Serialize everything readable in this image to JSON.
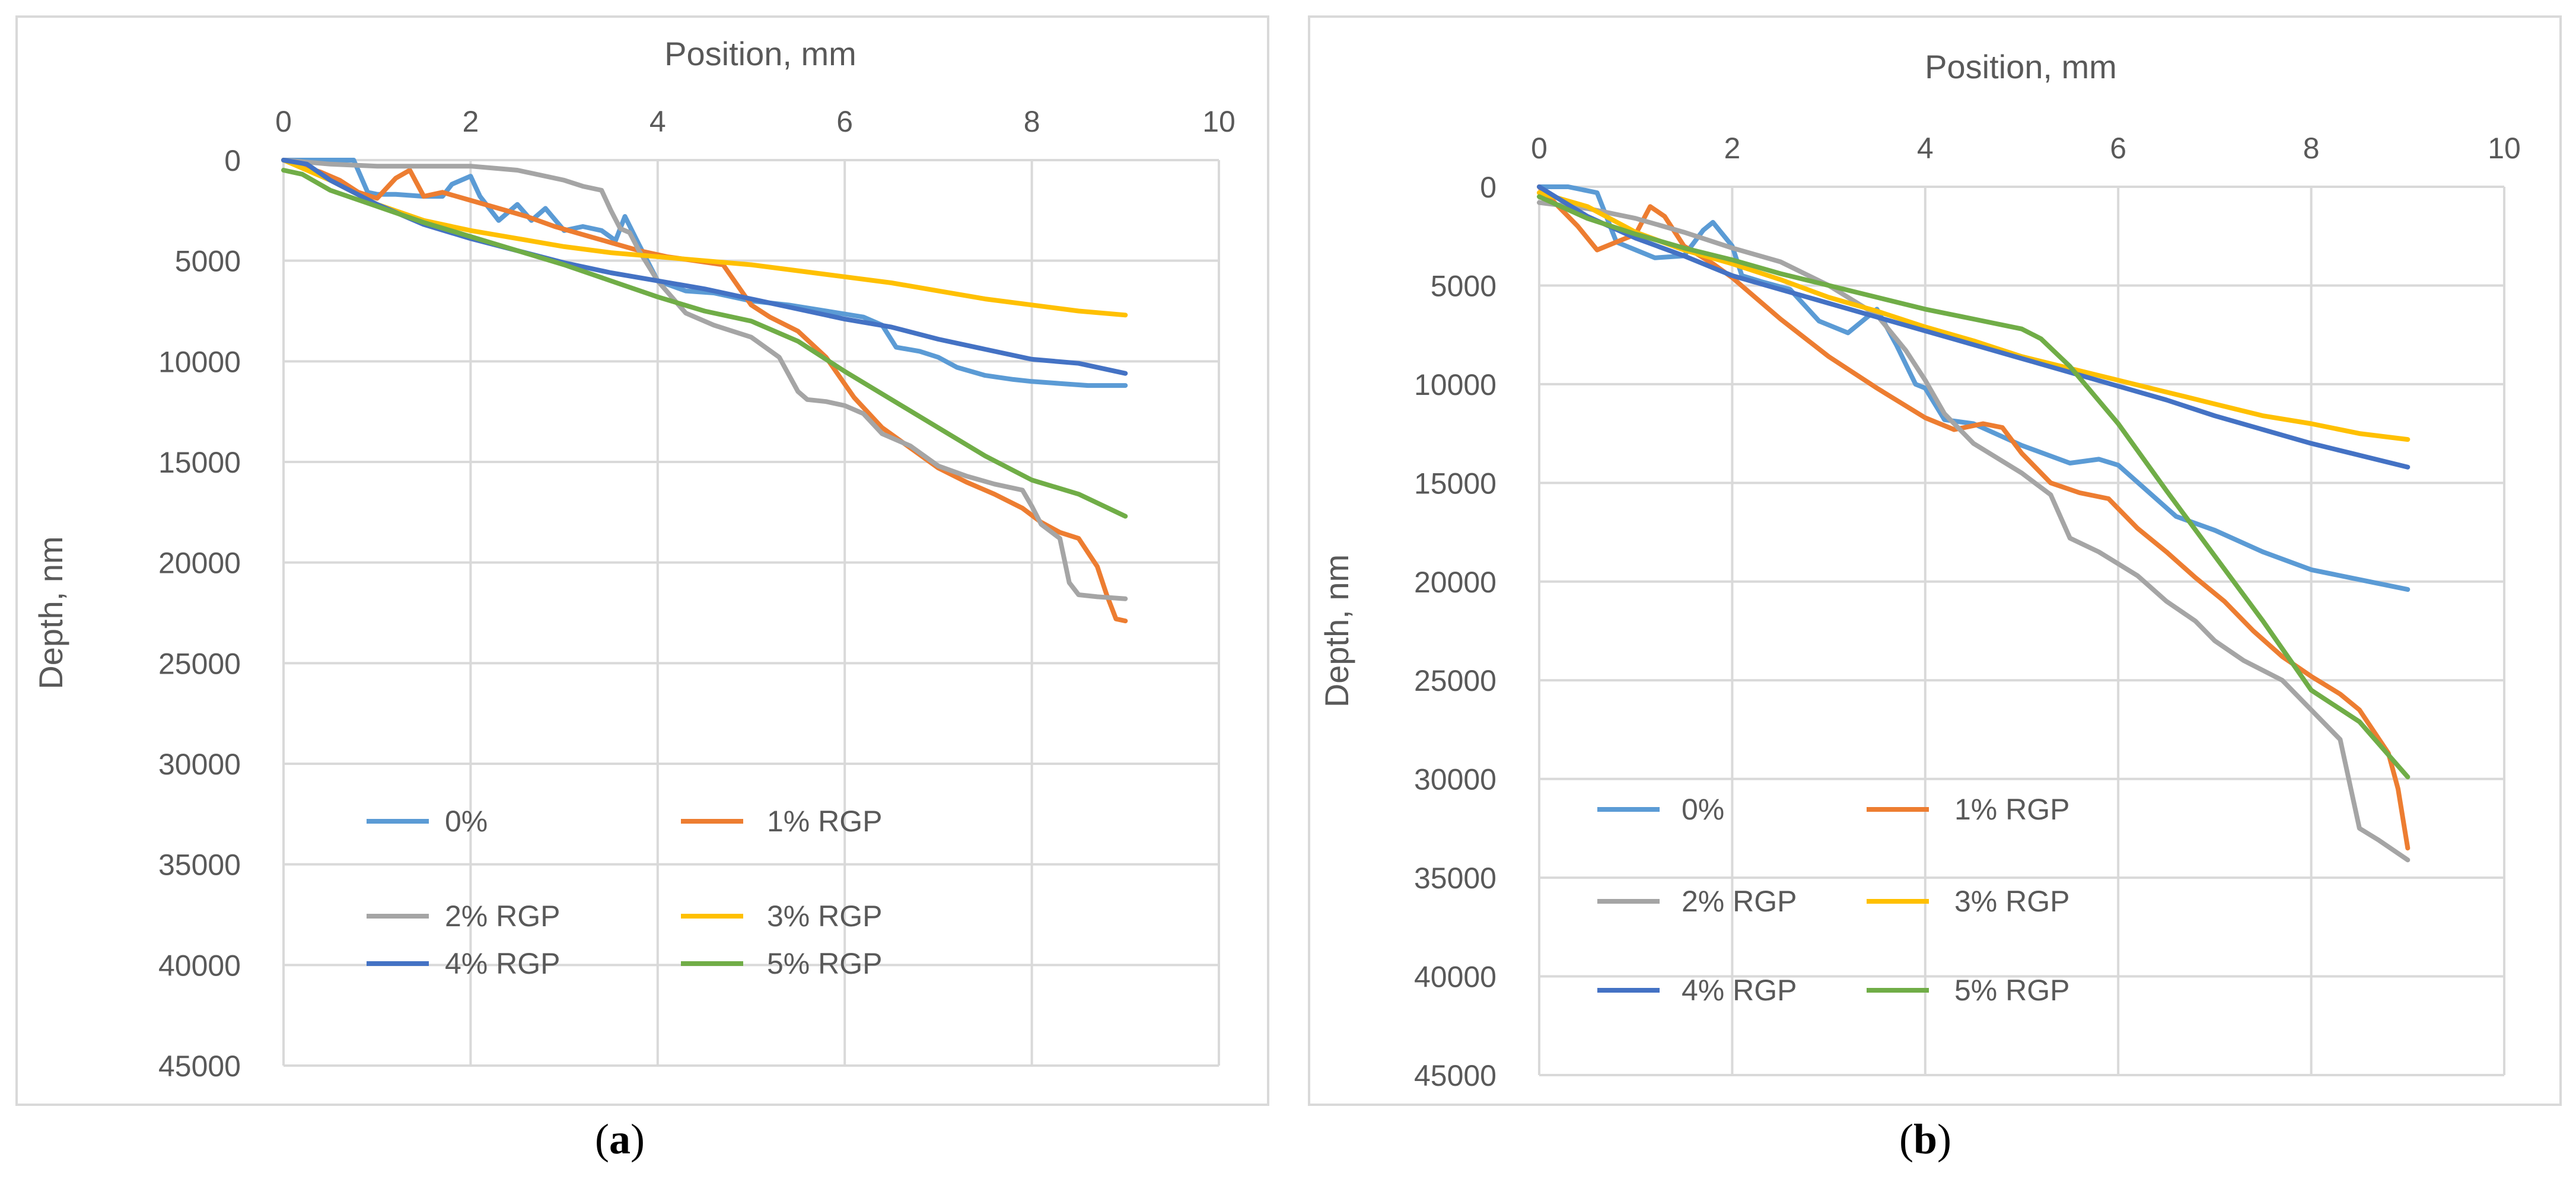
{
  "chart_data": [
    {
      "type": "line",
      "panel_label": "a",
      "title": "",
      "xlabel": "Position, mm",
      "ylabel": "Depth, nm",
      "xlim": [
        0,
        10
      ],
      "ylim": [
        0,
        45000
      ],
      "y_inverted": true,
      "x_axis_position": "top",
      "xticks": [
        0,
        2,
        4,
        6,
        8,
        10
      ],
      "yticks": [
        0,
        5000,
        10000,
        15000,
        20000,
        25000,
        30000,
        35000,
        40000,
        45000
      ],
      "grid": true,
      "legend_position": "bottom",
      "series": [
        {
          "name": "0%",
          "color": "#5b9bd5",
          "x": [
            0,
            0.3,
            0.5,
            0.65,
            0.75,
            0.9,
            1.0,
            1.2,
            1.5,
            1.7,
            1.8,
            2.0,
            2.1,
            2.3,
            2.5,
            2.65,
            2.8,
            3.0,
            3.2,
            3.4,
            3.55,
            3.65,
            3.8,
            4.0,
            4.3,
            4.6,
            5.0,
            5.4,
            5.8,
            6.2,
            6.4,
            6.55,
            6.8,
            7.0,
            7.2,
            7.5,
            7.8,
            8.0,
            8.3,
            8.6,
            9.0
          ],
          "y": [
            0,
            0,
            0,
            0,
            0,
            1600,
            1700,
            1700,
            1800,
            1800,
            1200,
            800,
            1800,
            3000,
            2200,
            3000,
            2400,
            3500,
            3300,
            3500,
            4000,
            2800,
            4200,
            6000,
            6500,
            6600,
            7000,
            7200,
            7500,
            7800,
            8200,
            9300,
            9500,
            9800,
            10300,
            10700,
            10900,
            11000,
            11100,
            11200,
            11200
          ]
        },
        {
          "name": "1% RGP",
          "color": "#ed7d31",
          "x": [
            0,
            0.2,
            0.4,
            0.6,
            0.8,
            1.0,
            1.2,
            1.35,
            1.5,
            1.7,
            2.0,
            2.3,
            2.6,
            2.9,
            3.2,
            3.5,
            3.8,
            4.1,
            4.4,
            4.7,
            5.0,
            5.2,
            5.5,
            5.8,
            6.1,
            6.4,
            6.7,
            7.0,
            7.3,
            7.6,
            7.9,
            8.1,
            8.3,
            8.5,
            8.7,
            8.8,
            8.9,
            9.0
          ],
          "y": [
            0,
            300,
            600,
            1000,
            1600,
            1900,
            900,
            500,
            1800,
            1600,
            2000,
            2400,
            2800,
            3300,
            3700,
            4100,
            4500,
            4800,
            5000,
            5200,
            7200,
            7800,
            8500,
            9800,
            11800,
            13300,
            14300,
            15300,
            16000,
            16600,
            17300,
            18000,
            18500,
            18800,
            20200,
            21600,
            22800,
            22900
          ]
        },
        {
          "name": "2% RGP",
          "color": "#a5a5a5",
          "x": [
            0,
            0.5,
            1.0,
            1.5,
            2.0,
            2.5,
            3.0,
            3.2,
            3.4,
            3.5,
            3.6,
            3.7,
            3.8,
            4.0,
            4.3,
            4.6,
            5.0,
            5.3,
            5.5,
            5.6,
            5.8,
            6.0,
            6.2,
            6.4,
            6.7,
            7.0,
            7.3,
            7.6,
            7.9,
            8.0,
            8.1,
            8.3,
            8.4,
            8.5,
            8.7,
            9.0
          ],
          "y": [
            0,
            200,
            300,
            300,
            300,
            500,
            1000,
            1300,
            1500,
            2500,
            3400,
            3600,
            4500,
            6000,
            7600,
            8200,
            8800,
            9800,
            11500,
            11900,
            12000,
            12200,
            12600,
            13600,
            14200,
            15200,
            15700,
            16100,
            16400,
            17200,
            18100,
            18800,
            21000,
            21600,
            21700,
            21800
          ]
        },
        {
          "name": "3% RGP",
          "color": "#ffc000",
          "x": [
            0,
            0.5,
            1.0,
            1.5,
            2.0,
            2.5,
            3.0,
            3.5,
            4.0,
            4.5,
            5.0,
            5.5,
            6.0,
            6.5,
            7.0,
            7.5,
            8.0,
            8.5,
            9.0
          ],
          "y": [
            0,
            1000,
            2200,
            3000,
            3500,
            3900,
            4300,
            4600,
            4800,
            5000,
            5200,
            5500,
            5800,
            6100,
            6500,
            6900,
            7200,
            7500,
            7700
          ]
        },
        {
          "name": "4% RGP",
          "color": "#4472c4",
          "x": [
            0,
            0.25,
            0.5,
            1.0,
            1.5,
            2.0,
            2.5,
            3.0,
            3.5,
            4.0,
            4.5,
            5.0,
            5.5,
            6.0,
            6.5,
            7.0,
            7.5,
            8.0,
            8.5,
            9.0
          ],
          "y": [
            0,
            200,
            1000,
            2200,
            3200,
            3900,
            4500,
            5100,
            5600,
            6000,
            6400,
            6900,
            7400,
            7900,
            8300,
            8900,
            9400,
            9900,
            10100,
            10600
          ]
        },
        {
          "name": "5% RGP",
          "color": "#70ad47",
          "x": [
            0,
            0.2,
            0.5,
            1.0,
            1.5,
            2.0,
            2.5,
            3.0,
            3.5,
            4.0,
            4.5,
            5.0,
            5.5,
            6.0,
            6.5,
            7.0,
            7.5,
            8.0,
            8.5,
            9.0
          ],
          "y": [
            500,
            700,
            1500,
            2300,
            3100,
            3800,
            4500,
            5200,
            6000,
            6800,
            7500,
            8000,
            9000,
            10500,
            11900,
            13300,
            14700,
            15900,
            16600,
            17700
          ]
        }
      ]
    },
    {
      "type": "line",
      "panel_label": "b",
      "title": "",
      "xlabel": "Position, mm",
      "ylabel": "Depth, nm",
      "xlim": [
        0,
        10
      ],
      "ylim": [
        0,
        45000
      ],
      "y_inverted": true,
      "x_axis_position": "top",
      "xticks": [
        0,
        2,
        4,
        6,
        8,
        10
      ],
      "yticks": [
        0,
        5000,
        10000,
        15000,
        20000,
        25000,
        30000,
        35000,
        40000,
        45000
      ],
      "grid": true,
      "legend_position": "bottom",
      "series": [
        {
          "name": "0%",
          "color": "#5b9bd5",
          "x": [
            0,
            0.3,
            0.6,
            0.8,
            1.0,
            1.2,
            1.5,
            1.7,
            1.8,
            2.0,
            2.1,
            2.3,
            2.6,
            2.9,
            3.2,
            3.5,
            3.7,
            3.9,
            4.0,
            4.2,
            4.5,
            5.0,
            5.5,
            5.8,
            6.0,
            6.3,
            6.6,
            7.0,
            7.5,
            8.0,
            8.5,
            9.0
          ],
          "y": [
            0,
            0,
            300,
            2800,
            3200,
            3600,
            3500,
            2200,
            1800,
            3000,
            4500,
            4800,
            5200,
            6800,
            7400,
            6200,
            8000,
            10000,
            10200,
            11800,
            12000,
            13100,
            14000,
            13800,
            14100,
            15400,
            16700,
            17400,
            18500,
            19400,
            19900,
            20400
          ]
        },
        {
          "name": "1% RGP",
          "color": "#ed7d31",
          "x": [
            0,
            0.2,
            0.4,
            0.6,
            0.8,
            1.0,
            1.15,
            1.3,
            1.5,
            1.8,
            2.0,
            2.5,
            3.0,
            3.5,
            4.0,
            4.3,
            4.6,
            4.8,
            5.0,
            5.3,
            5.6,
            5.9,
            6.2,
            6.5,
            6.8,
            7.1,
            7.4,
            7.7,
            8.0,
            8.3,
            8.5,
            8.8,
            8.9,
            9.0
          ],
          "y": [
            0,
            1000,
            2000,
            3200,
            2800,
            2400,
            1000,
            1500,
            3000,
            3900,
            4600,
            6700,
            8600,
            10200,
            11700,
            12300,
            12000,
            12200,
            13500,
            15000,
            15500,
            15800,
            17300,
            18500,
            19800,
            21000,
            22500,
            23800,
            24800,
            25700,
            26500,
            28700,
            30500,
            33500
          ]
        },
        {
          "name": "2% RGP",
          "color": "#a5a5a5",
          "x": [
            0,
            0.5,
            1.0,
            1.5,
            2.0,
            2.5,
            3.0,
            3.5,
            3.8,
            4.0,
            4.2,
            4.5,
            5.0,
            5.3,
            5.5,
            5.8,
            6.2,
            6.5,
            6.8,
            7.0,
            7.3,
            7.7,
            8.0,
            8.3,
            8.5,
            8.7,
            9.0
          ],
          "y": [
            800,
            1100,
            1600,
            2300,
            3100,
            3800,
            5000,
            6500,
            8300,
            9800,
            11500,
            13000,
            14500,
            15600,
            17800,
            18500,
            19700,
            21000,
            22000,
            23000,
            24000,
            25000,
            26500,
            28000,
            32500,
            33100,
            34100
          ]
        },
        {
          "name": "3% RGP",
          "color": "#ffc000",
          "x": [
            0,
            0.5,
            1.0,
            1.5,
            2.0,
            2.5,
            3.0,
            3.5,
            4.0,
            4.5,
            5.0,
            5.5,
            6.0,
            6.5,
            7.0,
            7.5,
            8.0,
            8.5,
            9.0
          ],
          "y": [
            300,
            1000,
            2300,
            3200,
            3900,
            4700,
            5600,
            6300,
            7100,
            7800,
            8600,
            9200,
            9800,
            10400,
            11000,
            11600,
            12000,
            12500,
            12800
          ]
        },
        {
          "name": "4% RGP",
          "color": "#4472c4",
          "x": [
            0,
            0.5,
            1.0,
            1.5,
            2.0,
            2.5,
            3.0,
            3.5,
            4.0,
            4.5,
            5.0,
            5.5,
            6.0,
            6.5,
            7.0,
            7.5,
            8.0,
            8.5,
            9.0
          ],
          "y": [
            0,
            1500,
            2600,
            3500,
            4500,
            5200,
            5900,
            6600,
            7300,
            8000,
            8700,
            9400,
            10100,
            10800,
            11600,
            12300,
            13000,
            13600,
            14200
          ]
        },
        {
          "name": "5% RGP",
          "color": "#70ad47",
          "x": [
            0,
            0.5,
            1.0,
            1.5,
            2.0,
            2.5,
            3.0,
            3.5,
            4.0,
            4.5,
            5.0,
            5.2,
            5.5,
            6.0,
            6.5,
            7.0,
            7.5,
            8.0,
            8.5,
            9.0
          ],
          "y": [
            500,
            1600,
            2400,
            3100,
            3700,
            4400,
            5000,
            5600,
            6200,
            6700,
            7200,
            7700,
            9100,
            12000,
            15400,
            18700,
            22000,
            25500,
            27100,
            29900
          ]
        }
      ]
    }
  ],
  "captions": {
    "a": "(a)",
    "b": "(b)",
    "a_open": "(",
    "a_letter": "a",
    "a_close": ")",
    "b_open": "(",
    "b_letter": "b",
    "b_close": ")"
  }
}
